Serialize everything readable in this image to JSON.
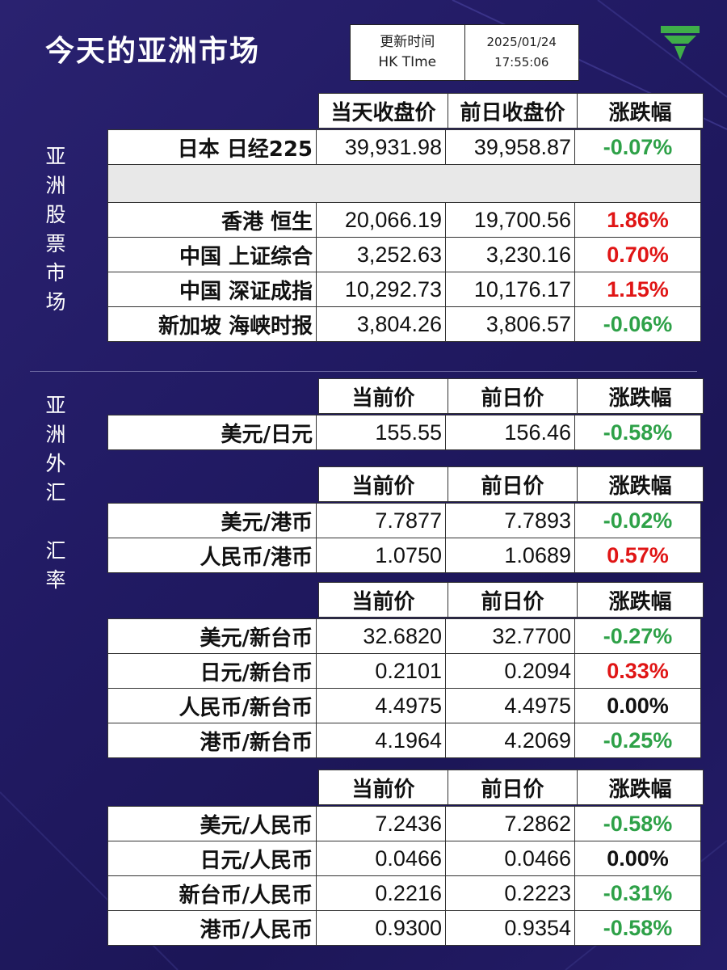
{
  "title": "今天的亚洲市场",
  "time_box": {
    "label1": "更新时间",
    "label2": "HK TIme",
    "date": "2025/01/24",
    "time": "17:55:06"
  },
  "side_labels": {
    "stocks": [
      "亚",
      "洲",
      "股",
      "票",
      "市",
      "场"
    ],
    "fx": [
      "亚",
      "洲",
      "外",
      "汇",
      "",
      "汇",
      "率"
    ]
  },
  "colors": {
    "background": "#211a63",
    "up": "#e01515",
    "down": "#2ea148",
    "logo": "#3fae49"
  },
  "icons": {
    "logo": "logo-icon"
  },
  "stocks": {
    "headers": [
      "当天收盘价",
      "前日收盘价",
      "涨跌幅"
    ],
    "row_top": {
      "name": "日本 日经225",
      "close": "39,931.98",
      "prev": "39,958.87",
      "change": "-0.07%",
      "dir": "down"
    },
    "rows": [
      {
        "name": "香港 恒生",
        "close": "20,066.19",
        "prev": "19,700.56",
        "change": "1.86%",
        "dir": "up"
      },
      {
        "name": "中国 上证综合",
        "close": "3,252.63",
        "prev": "3,230.16",
        "change": "0.70%",
        "dir": "up"
      },
      {
        "name": "中国 深证成指",
        "close": "10,292.73",
        "prev": "10,176.17",
        "change": "1.15%",
        "dir": "up"
      },
      {
        "name": "新加坡 海峡时报",
        "close": "3,804.26",
        "prev": "3,806.57",
        "change": "-0.06%",
        "dir": "down"
      }
    ]
  },
  "fx_headers": [
    "当前价",
    "前日价",
    "涨跌幅"
  ],
  "fx_groups": [
    {
      "rows": [
        {
          "name": "美元/日元",
          "cur": "155.55",
          "prev": "156.46",
          "change": "-0.58%",
          "dir": "down"
        }
      ]
    },
    {
      "rows": [
        {
          "name": "美元/港币",
          "cur": "7.7877",
          "prev": "7.7893",
          "change": "-0.02%",
          "dir": "down"
        },
        {
          "name": "人民币/港币",
          "cur": "1.0750",
          "prev": "1.0689",
          "change": "0.57%",
          "dir": "up"
        }
      ]
    },
    {
      "rows": [
        {
          "name": "美元/新台币",
          "cur": "32.6820",
          "prev": "32.7700",
          "change": "-0.27%",
          "dir": "down"
        },
        {
          "name": "日元/新台币",
          "cur": "0.2101",
          "prev": "0.2094",
          "change": "0.33%",
          "dir": "up"
        },
        {
          "name": "人民币/新台币",
          "cur": "4.4975",
          "prev": "4.4975",
          "change": "0.00%",
          "dir": "flat"
        },
        {
          "name": "港币/新台币",
          "cur": "4.1964",
          "prev": "4.2069",
          "change": "-0.25%",
          "dir": "down"
        }
      ]
    },
    {
      "rows": [
        {
          "name": "美元/人民币",
          "cur": "7.2436",
          "prev": "7.2862",
          "change": "-0.58%",
          "dir": "down"
        },
        {
          "name": "日元/人民币",
          "cur": "0.0466",
          "prev": "0.0466",
          "change": "0.00%",
          "dir": "flat"
        },
        {
          "name": "新台币/人民币",
          "cur": "0.2216",
          "prev": "0.2223",
          "change": "-0.31%",
          "dir": "down"
        },
        {
          "name": "港币/人民币",
          "cur": "0.9300",
          "prev": "0.9354",
          "change": "-0.58%",
          "dir": "down"
        }
      ]
    }
  ]
}
